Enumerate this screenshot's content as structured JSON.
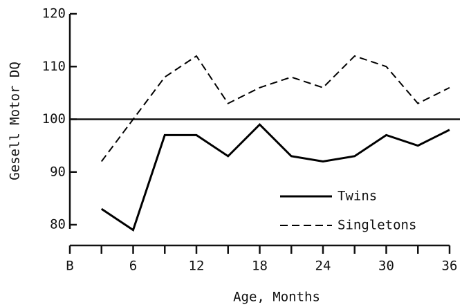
{
  "chart_data": {
    "type": "line",
    "ylabel": "Gesell Motor DQ",
    "xlabel": "Age, Months",
    "x": [
      3,
      6,
      9,
      12,
      15,
      18,
      21,
      24,
      27,
      30,
      33,
      36
    ],
    "series": [
      {
        "name": "Twins",
        "color": "#000000",
        "dash": "solid",
        "values": [
          83,
          79,
          97,
          97,
          93,
          99,
          93,
          92,
          93,
          97,
          95,
          98
        ]
      },
      {
        "name": "Singletons",
        "color": "#000000",
        "dash": "dashed",
        "values": [
          92,
          100,
          108,
          112,
          103,
          106,
          108,
          106,
          112,
          110,
          103,
          106
        ]
      }
    ],
    "xlim": [
      0,
      36
    ],
    "xticks": [
      {
        "value": 0,
        "label": "B"
      },
      6,
      12,
      18,
      24,
      30,
      36
    ],
    "xminorticks": [
      3,
      9,
      15,
      21,
      27,
      33
    ],
    "ylim": [
      80,
      120
    ],
    "yticks": [
      80,
      90,
      100,
      110,
      120
    ],
    "reference_line": 100,
    "legend": "lower right",
    "grid": false
  }
}
